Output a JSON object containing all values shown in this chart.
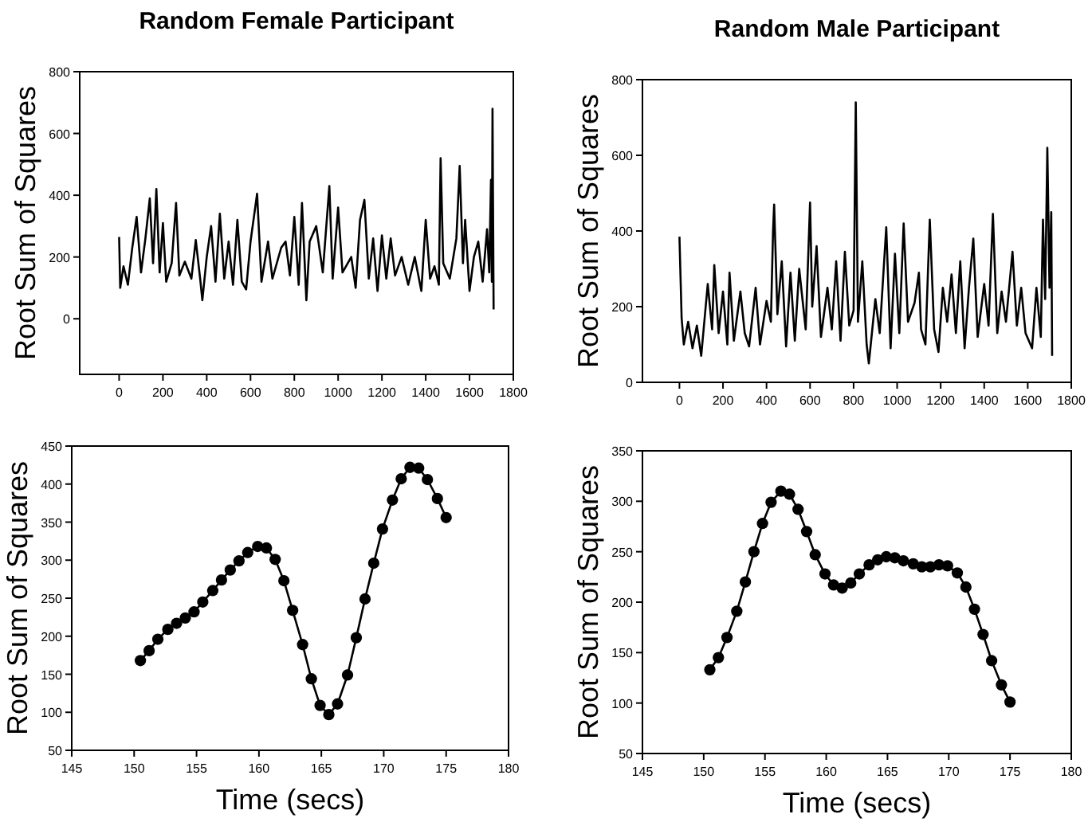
{
  "chart_data": [
    {
      "type": "line",
      "title": "Random Female Participant",
      "ylabel": "Root Sum of Squares",
      "xlim": [
        -180,
        1800
      ],
      "ylim": [
        -180,
        800
      ],
      "xticks": [
        0,
        200,
        400,
        600,
        800,
        1000,
        1200,
        1400,
        1600,
        1800
      ],
      "yticks": [
        0,
        200,
        400,
        600,
        800
      ],
      "marker": "none",
      "series": [
        {
          "color": "#000000",
          "x": [
            0,
            5,
            20,
            40,
            60,
            80,
            100,
            120,
            140,
            155,
            170,
            185,
            200,
            215,
            240,
            260,
            275,
            300,
            330,
            350,
            370,
            380,
            400,
            420,
            440,
            460,
            480,
            500,
            520,
            540,
            560,
            580,
            600,
            630,
            650,
            680,
            700,
            740,
            760,
            780,
            800,
            820,
            835,
            855,
            870,
            900,
            930,
            960,
            975,
            1000,
            1020,
            1060,
            1080,
            1100,
            1120,
            1140,
            1160,
            1180,
            1200,
            1220,
            1240,
            1260,
            1290,
            1320,
            1350,
            1380,
            1400,
            1420,
            1440,
            1460,
            1468,
            1480,
            1510,
            1540,
            1555,
            1570,
            1580,
            1600,
            1620,
            1640,
            1660,
            1680,
            1690,
            1698,
            1702,
            1705,
            1710
          ],
          "values": [
            265,
            100,
            170,
            110,
            230,
            330,
            150,
            260,
            390,
            180,
            420,
            150,
            310,
            120,
            180,
            375,
            140,
            185,
            130,
            255,
            130,
            60,
            200,
            300,
            120,
            340,
            130,
            250,
            110,
            320,
            120,
            95,
            250,
            405,
            120,
            250,
            130,
            230,
            250,
            140,
            330,
            110,
            375,
            60,
            250,
            300,
            150,
            430,
            130,
            360,
            150,
            200,
            100,
            320,
            385,
            130,
            260,
            90,
            270,
            130,
            260,
            140,
            200,
            110,
            200,
            90,
            320,
            130,
            170,
            110,
            520,
            180,
            130,
            260,
            495,
            180,
            320,
            90,
            200,
            250,
            120,
            290,
            150,
            450,
            120,
            680,
            30
          ]
        }
      ]
    },
    {
      "type": "line",
      "title": "Random Male Participant",
      "ylabel": "Root Sum of Squares",
      "xlim": [
        -170,
        1800
      ],
      "ylim": [
        0,
        800
      ],
      "xticks": [
        0,
        200,
        400,
        600,
        800,
        1000,
        1200,
        1400,
        1600,
        1800
      ],
      "yticks": [
        0,
        200,
        400,
        600,
        800
      ],
      "marker": "none",
      "series": [
        {
          "color": "#000000",
          "x": [
            0,
            10,
            20,
            40,
            60,
            80,
            100,
            130,
            150,
            160,
            180,
            200,
            220,
            230,
            250,
            280,
            300,
            320,
            350,
            370,
            400,
            420,
            430,
            435,
            450,
            470,
            490,
            510,
            530,
            550,
            580,
            600,
            610,
            630,
            650,
            680,
            700,
            720,
            740,
            760,
            780,
            800,
            810,
            820,
            840,
            860,
            870,
            900,
            920,
            950,
            970,
            990,
            1010,
            1030,
            1050,
            1080,
            1100,
            1110,
            1130,
            1150,
            1170,
            1190,
            1210,
            1230,
            1250,
            1270,
            1290,
            1310,
            1330,
            1350,
            1370,
            1400,
            1420,
            1440,
            1460,
            1480,
            1500,
            1530,
            1550,
            1570,
            1590,
            1620,
            1640,
            1660,
            1670,
            1680,
            1690,
            1700,
            1708,
            1712
          ],
          "values": [
            385,
            170,
            100,
            160,
            90,
            150,
            70,
            260,
            140,
            310,
            130,
            240,
            100,
            290,
            110,
            240,
            130,
            95,
            250,
            100,
            215,
            160,
            400,
            470,
            180,
            320,
            95,
            290,
            110,
            300,
            140,
            475,
            200,
            360,
            120,
            250,
            140,
            320,
            110,
            345,
            150,
            190,
            740,
            160,
            320,
            100,
            50,
            220,
            130,
            410,
            90,
            340,
            130,
            420,
            160,
            210,
            290,
            140,
            100,
            430,
            140,
            80,
            250,
            160,
            285,
            130,
            320,
            90,
            250,
            380,
            120,
            260,
            150,
            445,
            130,
            240,
            160,
            345,
            150,
            250,
            130,
            90,
            250,
            120,
            430,
            220,
            620,
            250,
            450,
            70
          ]
        }
      ]
    },
    {
      "type": "line",
      "xlabel": "Time (secs)",
      "ylabel": "Root Sum of Squares",
      "xlim": [
        145,
        180
      ],
      "ylim": [
        50,
        450
      ],
      "xticks": [
        145,
        150,
        155,
        160,
        165,
        170,
        175,
        180
      ],
      "yticks": [
        50,
        100,
        150,
        200,
        250,
        300,
        350,
        400,
        450
      ],
      "marker": "circle",
      "series": [
        {
          "color": "#000000",
          "x": [
            150.5,
            151.2,
            151.9,
            152.7,
            153.4,
            154.1,
            154.8,
            155.5,
            156.3,
            157.0,
            157.7,
            158.4,
            159.1,
            159.9,
            160.6,
            161.3,
            162.0,
            162.7,
            163.5,
            164.2,
            164.9,
            165.6,
            166.3,
            167.1,
            167.8,
            168.5,
            169.2,
            169.9,
            170.7,
            171.4,
            172.1,
            172.8,
            173.5,
            174.3,
            175.0
          ],
          "values": [
            168,
            181,
            196,
            209,
            217,
            224,
            232,
            245,
            260,
            274,
            287,
            299,
            310,
            318,
            316,
            301,
            273,
            234,
            189,
            144,
            109,
            97,
            111,
            149,
            198,
            249,
            296,
            341,
            379,
            407,
            422,
            421,
            406,
            381,
            356
          ]
        }
      ]
    },
    {
      "type": "line",
      "xlabel": "Time (secs)",
      "ylabel": "Root Sum of Squares",
      "xlim": [
        145,
        180
      ],
      "ylim": [
        50,
        350
      ],
      "xticks": [
        145,
        150,
        155,
        160,
        165,
        170,
        175,
        180
      ],
      "yticks": [
        50,
        100,
        150,
        200,
        250,
        300,
        350
      ],
      "marker": "circle",
      "series": [
        {
          "color": "#000000",
          "x": [
            150.5,
            151.2,
            151.9,
            152.7,
            153.4,
            154.1,
            154.8,
            155.5,
            156.3,
            157.0,
            157.7,
            158.4,
            159.1,
            159.9,
            160.6,
            161.3,
            162.0,
            162.7,
            163.5,
            164.2,
            164.9,
            165.6,
            166.3,
            167.1,
            167.8,
            168.5,
            169.2,
            169.9,
            170.7,
            171.4,
            172.1,
            172.8,
            173.5,
            174.3,
            175.0
          ],
          "values": [
            133,
            145,
            165,
            191,
            220,
            250,
            278,
            299,
            310,
            307,
            292,
            270,
            247,
            228,
            217,
            214,
            219,
            228,
            237,
            242,
            245,
            244,
            241,
            238,
            235,
            235,
            237,
            236,
            229,
            215,
            193,
            168,
            142,
            118,
            101
          ]
        }
      ]
    }
  ]
}
